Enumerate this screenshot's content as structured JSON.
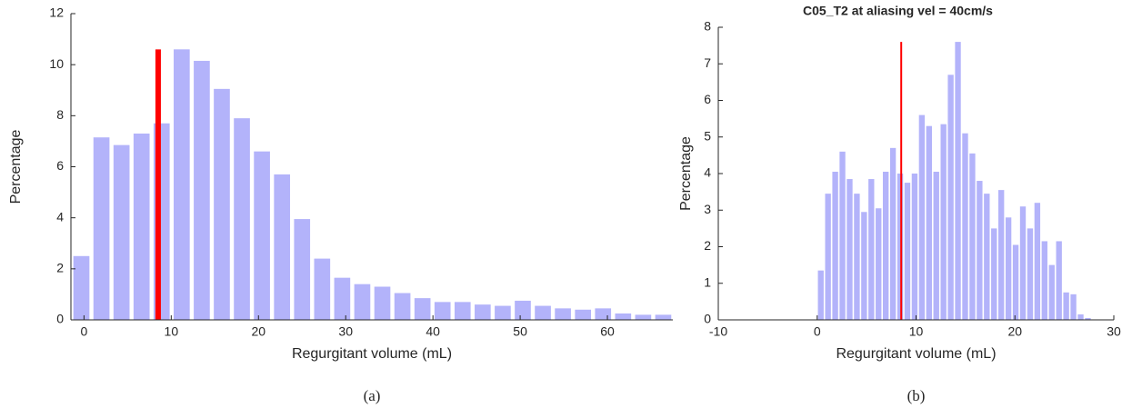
{
  "chart_data": [
    {
      "type": "histogram",
      "caption": "(a)",
      "x_label": "Regurgitant volume (mL)",
      "y_label": "Percentage",
      "bins": [
        -1.45,
        0.85,
        3.15,
        5.45,
        7.75,
        10.05,
        12.35,
        14.65,
        16.95,
        19.25,
        21.55,
        23.85,
        26.15,
        28.45,
        30.75,
        33.05,
        35.35,
        37.65,
        39.95,
        42.25,
        44.55,
        46.85,
        49.15,
        51.45,
        53.75,
        56.05,
        58.35,
        60.65,
        62.95,
        65.25,
        67.55
      ],
      "values": [
        2.5,
        7.15,
        6.85,
        7.3,
        7.7,
        10.6,
        10.15,
        9.05,
        7.9,
        6.6,
        5.7,
        3.95,
        2.4,
        1.65,
        1.4,
        1.3,
        1.05,
        0.85,
        0.7,
        0.7,
        0.6,
        0.55,
        0.75,
        0.55,
        0.45,
        0.4,
        0.45,
        0.25,
        0.2,
        0.2
      ],
      "color": "#b3b3fa",
      "ref_line": {
        "x": 8.5,
        "y": 10.6,
        "color": "#ff0000",
        "width": 6
      },
      "xlim": [
        -1.5,
        67.5
      ],
      "xticks": [
        0,
        10,
        20,
        30,
        40,
        50,
        60
      ],
      "ylim": [
        0,
        12
      ],
      "yticks": [
        0,
        2,
        4,
        6,
        8,
        10,
        12
      ]
    },
    {
      "type": "histogram",
      "title": "C05_T2 at aliasing vel = 40cm/s",
      "caption": "(b)",
      "x_label": "Regurgitant volume (mL)",
      "y_label": "Percentage",
      "bins": [
        0,
        0.73,
        1.46,
        2.19,
        2.92,
        3.65,
        4.38,
        5.11,
        5.84,
        6.57,
        7.3,
        8.03,
        8.76,
        9.49,
        10.22,
        10.95,
        11.68,
        12.41,
        13.14,
        13.87,
        14.6,
        15.33,
        16.06,
        16.79,
        17.52,
        18.25,
        18.98,
        19.71,
        20.44,
        21.17,
        21.9,
        22.63,
        23.36,
        24.09,
        24.82,
        25.55,
        26.28,
        27.01,
        27.74
      ],
      "values": [
        1.35,
        3.45,
        4.05,
        4.6,
        3.85,
        3.45,
        2.95,
        3.85,
        3.05,
        4.05,
        4.7,
        4.0,
        3.75,
        4.0,
        5.6,
        5.3,
        4.05,
        5.35,
        6.7,
        7.6,
        5.1,
        4.55,
        3.8,
        3.45,
        2.5,
        3.55,
        2.8,
        2.05,
        3.1,
        2.5,
        3.2,
        2.15,
        1.5,
        2.15,
        0.75,
        0.7,
        0.15,
        0.05
      ],
      "color": "#b3b3fa",
      "ref_line": {
        "x": 8.5,
        "y": 7.6,
        "color": "#ff0000",
        "width": 2
      },
      "xlim": [
        -10,
        30
      ],
      "xticks": [
        -10,
        0,
        10,
        20,
        30
      ],
      "ylim": [
        0,
        8
      ],
      "yticks": [
        0,
        1,
        2,
        3,
        4,
        5,
        6,
        7,
        8
      ]
    }
  ]
}
